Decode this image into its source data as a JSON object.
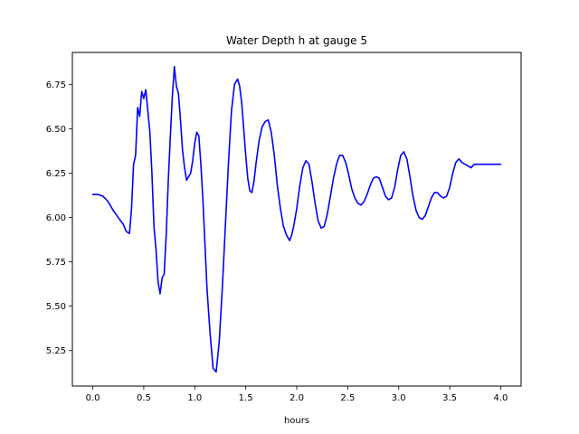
{
  "chart_data": {
    "type": "line",
    "title": "Water Depth h at gauge 5",
    "xlabel": "hours",
    "ylabel": "",
    "xlim": [
      -0.2,
      4.2
    ],
    "ylim": [
      5.05,
      6.93
    ],
    "xticks": [
      0.0,
      0.5,
      1.0,
      1.5,
      2.0,
      2.5,
      3.0,
      3.5,
      4.0
    ],
    "xtick_labels": [
      "0.0",
      "0.5",
      "1.0",
      "1.5",
      "2.0",
      "2.5",
      "3.0",
      "3.5",
      "4.0"
    ],
    "yticks": [
      5.25,
      5.5,
      5.75,
      6.0,
      6.25,
      6.5,
      6.75
    ],
    "ytick_labels": [
      "5.25",
      "5.50",
      "5.75",
      "6.00",
      "6.25",
      "6.50",
      "6.75"
    ],
    "grid": false,
    "series": [
      {
        "color": "#0000ff",
        "x": [
          0.0,
          0.05,
          0.1,
          0.15,
          0.2,
          0.25,
          0.3,
          0.33,
          0.36,
          0.38,
          0.4,
          0.42,
          0.44,
          0.46,
          0.48,
          0.5,
          0.52,
          0.54,
          0.56,
          0.58,
          0.6,
          0.62,
          0.64,
          0.66,
          0.68,
          0.7,
          0.72,
          0.74,
          0.76,
          0.78,
          0.8,
          0.82,
          0.84,
          0.86,
          0.88,
          0.9,
          0.92,
          0.94,
          0.96,
          0.98,
          1.0,
          1.02,
          1.04,
          1.06,
          1.08,
          1.1,
          1.12,
          1.15,
          1.18,
          1.21,
          1.24,
          1.27,
          1.3,
          1.33,
          1.36,
          1.39,
          1.42,
          1.44,
          1.46,
          1.48,
          1.5,
          1.52,
          1.54,
          1.56,
          1.58,
          1.6,
          1.63,
          1.66,
          1.69,
          1.72,
          1.75,
          1.78,
          1.81,
          1.84,
          1.87,
          1.9,
          1.93,
          1.95,
          1.97,
          2.0,
          2.03,
          2.06,
          2.09,
          2.12,
          2.15,
          2.18,
          2.21,
          2.24,
          2.27,
          2.3,
          2.33,
          2.36,
          2.39,
          2.42,
          2.45,
          2.48,
          2.51,
          2.54,
          2.57,
          2.6,
          2.63,
          2.66,
          2.69,
          2.72,
          2.75,
          2.78,
          2.81,
          2.84,
          2.87,
          2.9,
          2.93,
          2.96,
          2.99,
          3.02,
          3.05,
          3.08,
          3.11,
          3.14,
          3.17,
          3.2,
          3.23,
          3.26,
          3.29,
          3.32,
          3.35,
          3.38,
          3.41,
          3.44,
          3.47,
          3.5,
          3.53,
          3.56,
          3.59,
          3.62,
          3.65,
          3.68,
          3.71,
          3.74,
          3.77,
          3.8,
          3.83,
          3.86,
          3.89,
          3.92,
          3.95,
          3.98,
          4.0
        ],
        "y": [
          6.13,
          6.13,
          6.12,
          6.09,
          6.04,
          6.0,
          5.96,
          5.92,
          5.91,
          6.05,
          6.3,
          6.35,
          6.62,
          6.57,
          6.71,
          6.67,
          6.72,
          6.6,
          6.48,
          6.25,
          5.95,
          5.82,
          5.64,
          5.57,
          5.66,
          5.68,
          5.9,
          6.2,
          6.45,
          6.68,
          6.85,
          6.74,
          6.7,
          6.55,
          6.38,
          6.28,
          6.21,
          6.23,
          6.25,
          6.32,
          6.42,
          6.48,
          6.46,
          6.3,
          6.1,
          5.85,
          5.6,
          5.35,
          5.15,
          5.13,
          5.3,
          5.6,
          5.95,
          6.3,
          6.6,
          6.75,
          6.78,
          6.74,
          6.65,
          6.5,
          6.35,
          6.22,
          6.15,
          6.14,
          6.2,
          6.3,
          6.43,
          6.51,
          6.54,
          6.55,
          6.48,
          6.35,
          6.18,
          6.05,
          5.95,
          5.9,
          5.87,
          5.9,
          5.95,
          6.05,
          6.18,
          6.28,
          6.32,
          6.3,
          6.2,
          6.08,
          5.98,
          5.94,
          5.95,
          6.02,
          6.12,
          6.22,
          6.3,
          6.35,
          6.35,
          6.31,
          6.24,
          6.16,
          6.11,
          6.08,
          6.07,
          6.09,
          6.13,
          6.18,
          6.22,
          6.23,
          6.22,
          6.17,
          6.12,
          6.1,
          6.11,
          6.17,
          6.27,
          6.35,
          6.37,
          6.33,
          6.23,
          6.12,
          6.04,
          6.0,
          5.99,
          6.01,
          6.06,
          6.11,
          6.14,
          6.14,
          6.12,
          6.11,
          6.12,
          6.17,
          6.25,
          6.31,
          6.33,
          6.31,
          6.3,
          6.29,
          6.28,
          6.3,
          6.3,
          6.3,
          6.3,
          6.3,
          6.3,
          6.3,
          6.3,
          6.3,
          6.3
        ]
      }
    ]
  }
}
